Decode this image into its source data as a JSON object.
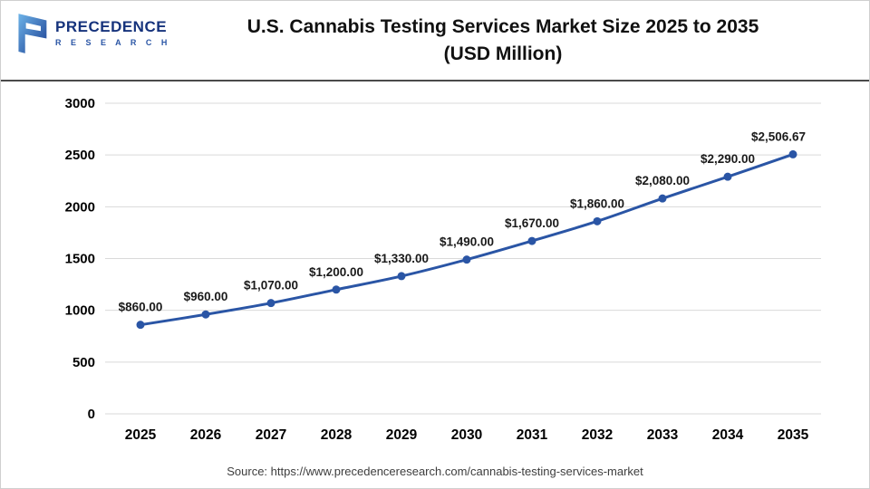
{
  "header": {
    "logo": {
      "wordmark": "PRECEDENCE",
      "subtitle": "R E S E A R C H"
    },
    "title_line1": "U.S. Cannabis Testing Services Market Size 2025 to 2035",
    "title_line2": "(USD Million)"
  },
  "chart_data": {
    "type": "line",
    "title": "U.S. Cannabis Testing Services Market Size 2025 to 2035 (USD Million)",
    "categories": [
      "2025",
      "2026",
      "2027",
      "2028",
      "2029",
      "2030",
      "2031",
      "2032",
      "2033",
      "2034",
      "2035"
    ],
    "values": [
      860,
      960,
      1070,
      1200,
      1330,
      1490,
      1670,
      1860,
      2080,
      2290,
      2506.67
    ],
    "point_labels": [
      "$860.00",
      "$960.00",
      "$1,070.00",
      "$1,200.00",
      "$1,330.00",
      "$1,490.00",
      "$1,670.00",
      "$1,860.00",
      "$2,080.00",
      "$2,290.00",
      "$2,506.67"
    ],
    "xlabel": "",
    "ylabel": "",
    "ylim": [
      0,
      3000
    ],
    "yticks": [
      0,
      500,
      1000,
      1500,
      2000,
      2500,
      3000
    ],
    "grid": true,
    "legend": false,
    "line_color": "#2a55a5",
    "marker_color": "#2a55a5",
    "grid_color": "#d9d9d9",
    "axis_text_color": "#000000",
    "data_label_color": "#1a1a1a"
  },
  "footer": {
    "source": "Source: https://www.precedenceresearch.com/cannabis-testing-services-market"
  }
}
